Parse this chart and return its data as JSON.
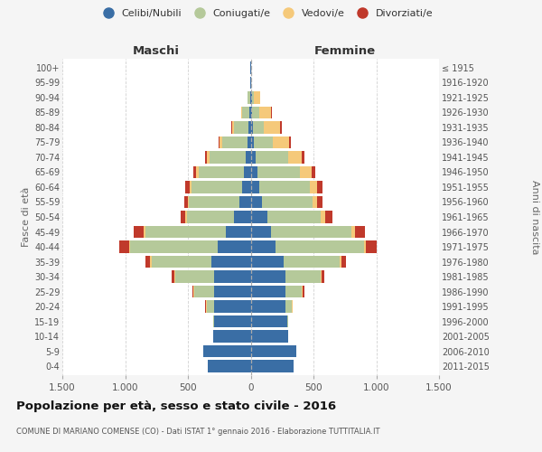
{
  "age_groups": [
    "0-4",
    "5-9",
    "10-14",
    "15-19",
    "20-24",
    "25-29",
    "30-34",
    "35-39",
    "40-44",
    "45-49",
    "50-54",
    "55-59",
    "60-64",
    "65-69",
    "70-74",
    "75-79",
    "80-84",
    "85-89",
    "90-94",
    "95-99",
    "100+"
  ],
  "birth_years": [
    "2011-2015",
    "2006-2010",
    "2001-2005",
    "1996-2000",
    "1991-1995",
    "1986-1990",
    "1981-1985",
    "1976-1980",
    "1971-1975",
    "1966-1970",
    "1961-1965",
    "1956-1960",
    "1951-1955",
    "1946-1950",
    "1941-1945",
    "1936-1940",
    "1931-1935",
    "1926-1930",
    "1921-1925",
    "1916-1920",
    "≤ 1915"
  ],
  "males": {
    "celibi": [
      340,
      380,
      300,
      290,
      290,
      290,
      290,
      310,
      260,
      200,
      130,
      90,
      70,
      55,
      40,
      25,
      15,
      10,
      5,
      2,
      2
    ],
    "coniugati": [
      0,
      0,
      0,
      10,
      60,
      160,
      310,
      480,
      700,
      640,
      380,
      400,
      400,
      360,
      290,
      200,
      120,
      60,
      20,
      0,
      0
    ],
    "vedovi": [
      0,
      0,
      0,
      0,
      5,
      5,
      5,
      10,
      10,
      10,
      10,
      10,
      15,
      20,
      20,
      20,
      15,
      5,
      0,
      0,
      0
    ],
    "divorziati": [
      0,
      0,
      0,
      0,
      5,
      10,
      25,
      40,
      75,
      80,
      40,
      30,
      35,
      25,
      15,
      10,
      5,
      0,
      0,
      0,
      0
    ]
  },
  "females": {
    "nubili": [
      340,
      360,
      300,
      290,
      280,
      280,
      280,
      260,
      200,
      160,
      130,
      90,
      70,
      55,
      40,
      25,
      15,
      10,
      8,
      2,
      2
    ],
    "coniugate": [
      0,
      0,
      0,
      8,
      50,
      130,
      280,
      450,
      700,
      640,
      430,
      400,
      400,
      340,
      260,
      150,
      90,
      55,
      20,
      0,
      0
    ],
    "vedove": [
      0,
      0,
      0,
      0,
      3,
      5,
      5,
      10,
      20,
      30,
      35,
      40,
      60,
      90,
      110,
      130,
      130,
      100,
      50,
      5,
      0
    ],
    "divorziate": [
      0,
      0,
      0,
      0,
      5,
      10,
      20,
      40,
      80,
      80,
      55,
      40,
      40,
      30,
      20,
      15,
      10,
      5,
      0,
      0,
      0
    ]
  },
  "colors": {
    "celibi": "#3a6ea5",
    "coniugati": "#b5c99a",
    "vedovi": "#f5c97a",
    "divorziati": "#c0392b"
  },
  "legend_labels": [
    "Celibi/Nubili",
    "Coniugati/e",
    "Vedovi/e",
    "Divorziati/e"
  ],
  "title": "Popolazione per età, sesso e stato civile - 2016",
  "subtitle": "COMUNE DI MARIANO COMENSE (CO) - Dati ISTAT 1° gennaio 2016 - Elaborazione TUTTITALIA.IT",
  "xlabel_left": "Maschi",
  "xlabel_right": "Femmine",
  "ylabel_left": "Fasce di età",
  "ylabel_right": "Anni di nascita",
  "xlim": 1500,
  "bg_color": "#f5f5f5",
  "plot_bg": "#ffffff",
  "grid_color": "#cccccc"
}
